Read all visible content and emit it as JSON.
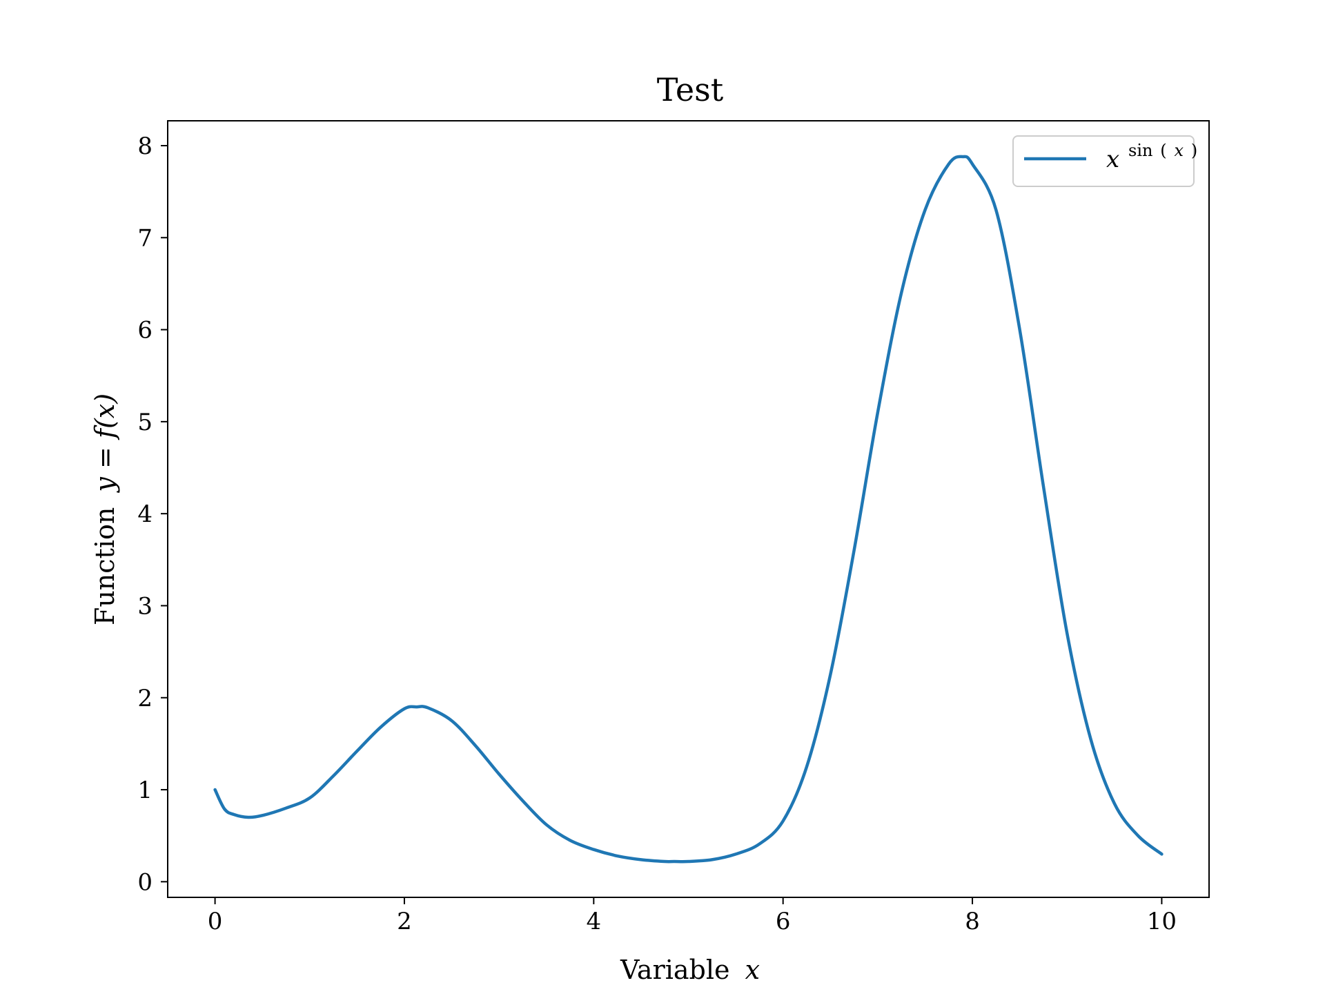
{
  "chart_data": {
    "type": "line",
    "title": "Test",
    "xlabel": {
      "text": "Variable",
      "var": "x"
    },
    "ylabel": {
      "text": "Function",
      "expr": "y = f(x)"
    },
    "xlim": [
      -0.5,
      10.5
    ],
    "ylim": [
      -0.17,
      8.27
    ],
    "x_ticks": [
      0,
      2,
      4,
      6,
      8,
      10
    ],
    "y_ticks": [
      0,
      1,
      2,
      3,
      4,
      5,
      6,
      7,
      8
    ],
    "x_tick_labels": [
      "0",
      "2",
      "4",
      "6",
      "8",
      "10"
    ],
    "y_tick_labels": [
      "0",
      "1",
      "2",
      "3",
      "4",
      "5",
      "6",
      "7",
      "8"
    ],
    "grid": false,
    "legend_position": "top-right",
    "series": [
      {
        "name": "x^sin(x)",
        "legend": {
          "base": "x",
          "exp_fn": "sin",
          "exp_arg": "x"
        },
        "color": "#1f77b4",
        "x": [
          0,
          0.1,
          0.2,
          0.35,
          0.5,
          0.75,
          1.0,
          1.25,
          1.5,
          1.75,
          2.0,
          2.13,
          2.25,
          2.5,
          2.75,
          3.0,
          3.25,
          3.5,
          3.75,
          4.0,
          4.25,
          4.5,
          4.75,
          4.85,
          5.0,
          5.25,
          5.5,
          5.75,
          6.0,
          6.25,
          6.5,
          6.75,
          7.0,
          7.25,
          7.5,
          7.75,
          7.9,
          8.0,
          8.25,
          8.5,
          8.75,
          9.0,
          9.25,
          9.5,
          9.75,
          10.0
        ],
        "y": [
          1.0,
          0.79,
          0.73,
          0.7,
          0.72,
          0.8,
          0.91,
          1.15,
          1.42,
          1.68,
          1.88,
          1.9,
          1.89,
          1.75,
          1.48,
          1.17,
          0.88,
          0.62,
          0.45,
          0.35,
          0.28,
          0.24,
          0.22,
          0.22,
          0.22,
          0.24,
          0.3,
          0.41,
          0.66,
          1.25,
          2.25,
          3.6,
          5.1,
          6.4,
          7.3,
          7.8,
          7.88,
          7.8,
          7.3,
          6.0,
          4.3,
          2.7,
          1.55,
          0.85,
          0.5,
          0.3
        ]
      }
    ]
  }
}
